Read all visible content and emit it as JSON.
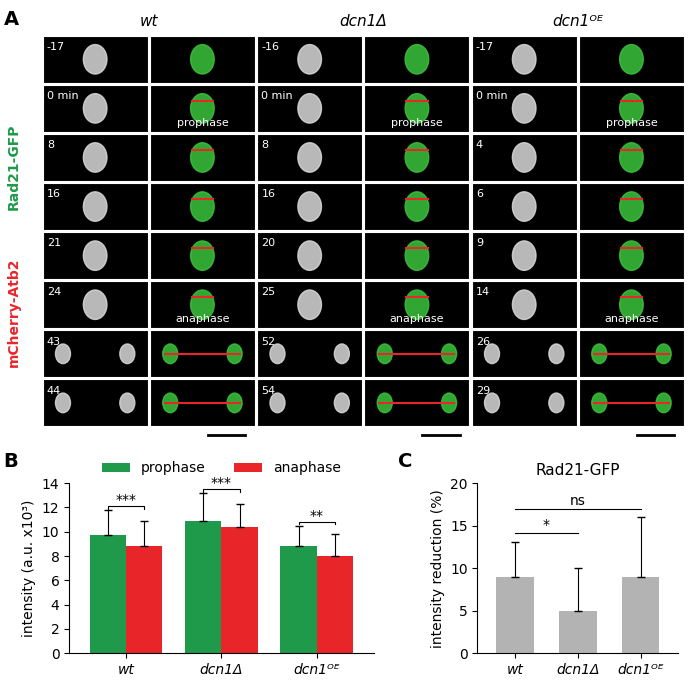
{
  "panel_labels": [
    "A",
    "B",
    "C"
  ],
  "image_panel": {
    "channel_label": [
      {
        "text": "mCherry-Atb2",
        "color": "#e8262a"
      },
      {
        "text": "Rad21-GFP",
        "color": "#1e9a4a"
      }
    ],
    "columns": [
      {
        "title": "wt",
        "times": [
          "-17",
          "0 min",
          "8",
          "16",
          "21",
          "24",
          "43",
          "44"
        ]
      },
      {
        "title": "dcn1Δ",
        "times": [
          "-16",
          "0 min",
          "8",
          "16",
          "20",
          "25",
          "52",
          "54"
        ]
      },
      {
        "title": "dcn1ᴼᴱ",
        "times": [
          "-17",
          "0 min",
          "4",
          "6",
          "9",
          "14",
          "26",
          "29"
        ]
      }
    ],
    "stage_labels": [
      {
        "row": 1,
        "text": "prophase"
      },
      {
        "row": 5,
        "text": "anaphase"
      }
    ]
  },
  "chart_data": [
    {
      "type": "bar",
      "categories": [
        "wt",
        "dcn1Δ",
        "dcn1ᴼᴱ"
      ],
      "series": [
        {
          "name": "prophase",
          "color": "#1e9a4a",
          "values": [
            9.7,
            10.9,
            8.8
          ],
          "errors": [
            2.1,
            2.3,
            1.7
          ]
        },
        {
          "name": "anaphase",
          "color": "#e8262a",
          "values": [
            8.8,
            10.35,
            8.0
          ],
          "errors": [
            2.1,
            1.95,
            1.8
          ]
        }
      ],
      "y_label": "intensity (a.u. x10³)",
      "ylim": [
        0,
        14
      ],
      "yticks": [
        0,
        2,
        4,
        6,
        8,
        10,
        12,
        14
      ],
      "legend": "upper center",
      "significance": [
        {
          "category": "wt",
          "text": "***"
        },
        {
          "category": "dcn1Δ",
          "text": "***"
        },
        {
          "category": "dcn1ᴼᴱ",
          "text": "**"
        }
      ]
    },
    {
      "type": "bar",
      "title": "Rad21-GFP",
      "categories": [
        "wt",
        "dcn1Δ",
        "dcn1ᴼᴱ"
      ],
      "values": [
        9,
        5,
        9
      ],
      "errors": [
        4.1,
        5,
        7
      ],
      "color": "#b3b3b3",
      "y_label": "intensity reduction (%)",
      "ylim": [
        0,
        20
      ],
      "yticks": [
        0,
        5,
        10,
        15,
        20
      ],
      "comparisons": [
        {
          "pair": [
            "wt",
            "dcn1Δ"
          ],
          "text": "*"
        },
        {
          "pair": [
            "wt",
            "dcn1ᴼᴱ"
          ],
          "text": "ns"
        }
      ]
    }
  ]
}
